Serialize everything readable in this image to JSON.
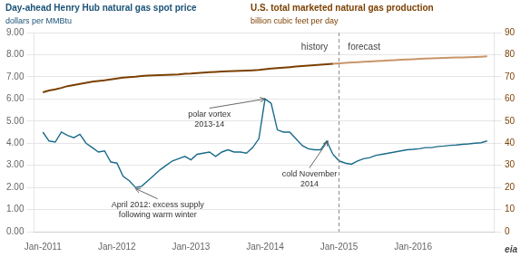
{
  "chart_data": {
    "type": "line",
    "titles": [
      {
        "text": "Day-ahead Henry Hub natural gas spot price",
        "subtitle": "dollars per MMBtu",
        "color": "#1a5276"
      },
      {
        "text": "U.S. total marketed natural gas production",
        "subtitle": "billion cubic feet per day",
        "color": "#7B3F00"
      }
    ],
    "footer": "eia",
    "grid": "y",
    "xlim": [
      2010.88,
      2017.1
    ],
    "xticks": [
      {
        "value": 2011.0,
        "label": "Jan-2011"
      },
      {
        "value": 2012.0,
        "label": "Jan-2012"
      },
      {
        "value": 2013.0,
        "label": "Jan-2013"
      },
      {
        "value": 2014.0,
        "label": "Jan-2014"
      },
      {
        "value": 2015.0,
        "label": "Jan-2015"
      },
      {
        "value": 2016.0,
        "label": "Jan-2016"
      }
    ],
    "ylim": [
      0,
      9.0
    ],
    "yticks": [
      {
        "value": 0.0,
        "label": "0.00"
      },
      {
        "value": 1.0,
        "label": "1.00"
      },
      {
        "value": 2.0,
        "label": "2.00"
      },
      {
        "value": 3.0,
        "label": "3.00"
      },
      {
        "value": 4.0,
        "label": "4.00"
      },
      {
        "value": 5.0,
        "label": "5.00"
      },
      {
        "value": 6.0,
        "label": "6.00"
      },
      {
        "value": 7.0,
        "label": "7.00"
      },
      {
        "value": 8.0,
        "label": "8.00"
      },
      {
        "value": 9.0,
        "label": "9.00"
      }
    ],
    "y2lim": [
      0,
      90
    ],
    "y2ticks": [
      0,
      10,
      20,
      30,
      40,
      50,
      60,
      70,
      80,
      90
    ],
    "vline": {
      "x": 2015.0,
      "line_style": "dashed"
    },
    "annotations": [
      {
        "text": "history",
        "x": 2014.85,
        "y": 8.55,
        "align": "right"
      },
      {
        "text": "forecast",
        "x": 2015.12,
        "y": 8.55,
        "align": "left"
      },
      {
        "text": "polar vortex\n2013-14",
        "x": 2013.25,
        "y": 5.5,
        "align": "center",
        "arrow_to": [
          2014.0,
          6.0
        ]
      },
      {
        "text": "April 2012: excess supply\nfollowing warm winter",
        "x": 2012.55,
        "y": 1.4,
        "align": "center",
        "arrow_to": [
          2012.25,
          1.95
        ]
      },
      {
        "text": "cold November\n2014",
        "x": 2014.6,
        "y": 2.8,
        "align": "center",
        "arrow_to": [
          2014.85,
          4.1
        ]
      }
    ],
    "series": [
      {
        "color": "#1a6b8a",
        "axis": "y",
        "x": [
          2011.0,
          2011.083,
          2011.167,
          2011.25,
          2011.333,
          2011.417,
          2011.5,
          2011.583,
          2011.667,
          2011.75,
          2011.833,
          2011.917,
          2012.0,
          2012.083,
          2012.167,
          2012.25,
          2012.333,
          2012.417,
          2012.5,
          2012.583,
          2012.667,
          2012.75,
          2012.833,
          2012.917,
          2013.0,
          2013.083,
          2013.167,
          2013.25,
          2013.333,
          2013.417,
          2013.5,
          2013.583,
          2013.667,
          2013.75,
          2013.833,
          2013.917,
          2014.0,
          2014.083,
          2014.167,
          2014.25,
          2014.333,
          2014.417,
          2014.5,
          2014.583,
          2014.667,
          2014.75,
          2014.833,
          2014.917
        ],
        "values": [
          4.5,
          4.1,
          4.05,
          4.5,
          4.35,
          4.25,
          4.4,
          4.0,
          3.8,
          3.6,
          3.65,
          3.15,
          3.1,
          2.5,
          2.3,
          2.0,
          2.05,
          2.3,
          2.55,
          2.8,
          3.0,
          3.2,
          3.3,
          3.4,
          3.25,
          3.5,
          3.55,
          3.6,
          3.4,
          3.6,
          3.7,
          3.6,
          3.6,
          3.55,
          3.8,
          4.2,
          6.0,
          5.8,
          4.6,
          4.5,
          4.5,
          4.2,
          3.9,
          3.75,
          3.7,
          3.7,
          4.1,
          3.5
        ]
      },
      {
        "color": "#1a6b8a",
        "axis": "y",
        "x": [
          2014.917,
          2015.0,
          2015.083,
          2015.167,
          2015.25,
          2015.333,
          2015.417,
          2015.5,
          2015.583,
          2015.667,
          2015.75,
          2015.833,
          2015.917,
          2016.0,
          2016.083,
          2016.167,
          2016.25,
          2016.333,
          2016.417,
          2016.5,
          2016.583,
          2016.667,
          2016.75,
          2016.833,
          2016.917,
          2017.0
        ],
        "values": [
          3.5,
          3.2,
          3.1,
          3.05,
          3.2,
          3.3,
          3.35,
          3.45,
          3.5,
          3.55,
          3.6,
          3.65,
          3.7,
          3.72,
          3.75,
          3.8,
          3.8,
          3.85,
          3.87,
          3.9,
          3.92,
          3.95,
          3.97,
          4.0,
          4.02,
          4.1
        ]
      },
      {
        "color": "#7B3F00",
        "axis": "y2",
        "x": [
          2011.0,
          2011.083,
          2011.167,
          2011.25,
          2011.333,
          2011.417,
          2011.5,
          2011.583,
          2011.667,
          2011.75,
          2011.833,
          2011.917,
          2012.0,
          2012.083,
          2012.167,
          2012.25,
          2012.333,
          2012.417,
          2012.5,
          2012.583,
          2012.667,
          2012.75,
          2012.833,
          2012.917,
          2013.0,
          2013.083,
          2013.167,
          2013.25,
          2013.333,
          2013.417,
          2013.5,
          2013.583,
          2013.667,
          2013.75,
          2013.833,
          2013.917,
          2014.0,
          2014.083,
          2014.167,
          2014.25,
          2014.333,
          2014.417,
          2014.5,
          2014.583,
          2014.667,
          2014.75,
          2014.833,
          2014.917
        ],
        "values": [
          63.0,
          63.8,
          64.3,
          65.0,
          65.8,
          66.3,
          66.8,
          67.3,
          67.8,
          68.1,
          68.4,
          68.8,
          69.2,
          69.6,
          69.9,
          70.1,
          70.4,
          70.6,
          70.7,
          70.75,
          70.85,
          70.95,
          71.1,
          71.4,
          71.5,
          71.7,
          71.9,
          72.1,
          72.25,
          72.4,
          72.55,
          72.65,
          72.75,
          72.85,
          72.95,
          73.1,
          73.4,
          73.7,
          73.9,
          74.15,
          74.4,
          74.7,
          74.9,
          75.1,
          75.25,
          75.45,
          75.65,
          75.9
        ]
      },
      {
        "color": "#C8956A",
        "axis": "y2",
        "x": [
          2014.917,
          2015.0,
          2015.083,
          2015.167,
          2015.25,
          2015.333,
          2015.417,
          2015.5,
          2015.583,
          2015.667,
          2015.75,
          2015.833,
          2015.917,
          2016.0,
          2016.083,
          2016.167,
          2016.25,
          2016.333,
          2016.417,
          2016.5,
          2016.583,
          2016.667,
          2016.75,
          2016.833,
          2016.917,
          2017.0
        ],
        "values": [
          75.9,
          76.1,
          76.3,
          76.5,
          76.65,
          76.8,
          76.95,
          77.1,
          77.25,
          77.4,
          77.55,
          77.7,
          77.85,
          77.95,
          78.1,
          78.2,
          78.3,
          78.4,
          78.5,
          78.6,
          78.7,
          78.8,
          78.9,
          79.0,
          79.1,
          79.25
        ]
      }
    ]
  }
}
